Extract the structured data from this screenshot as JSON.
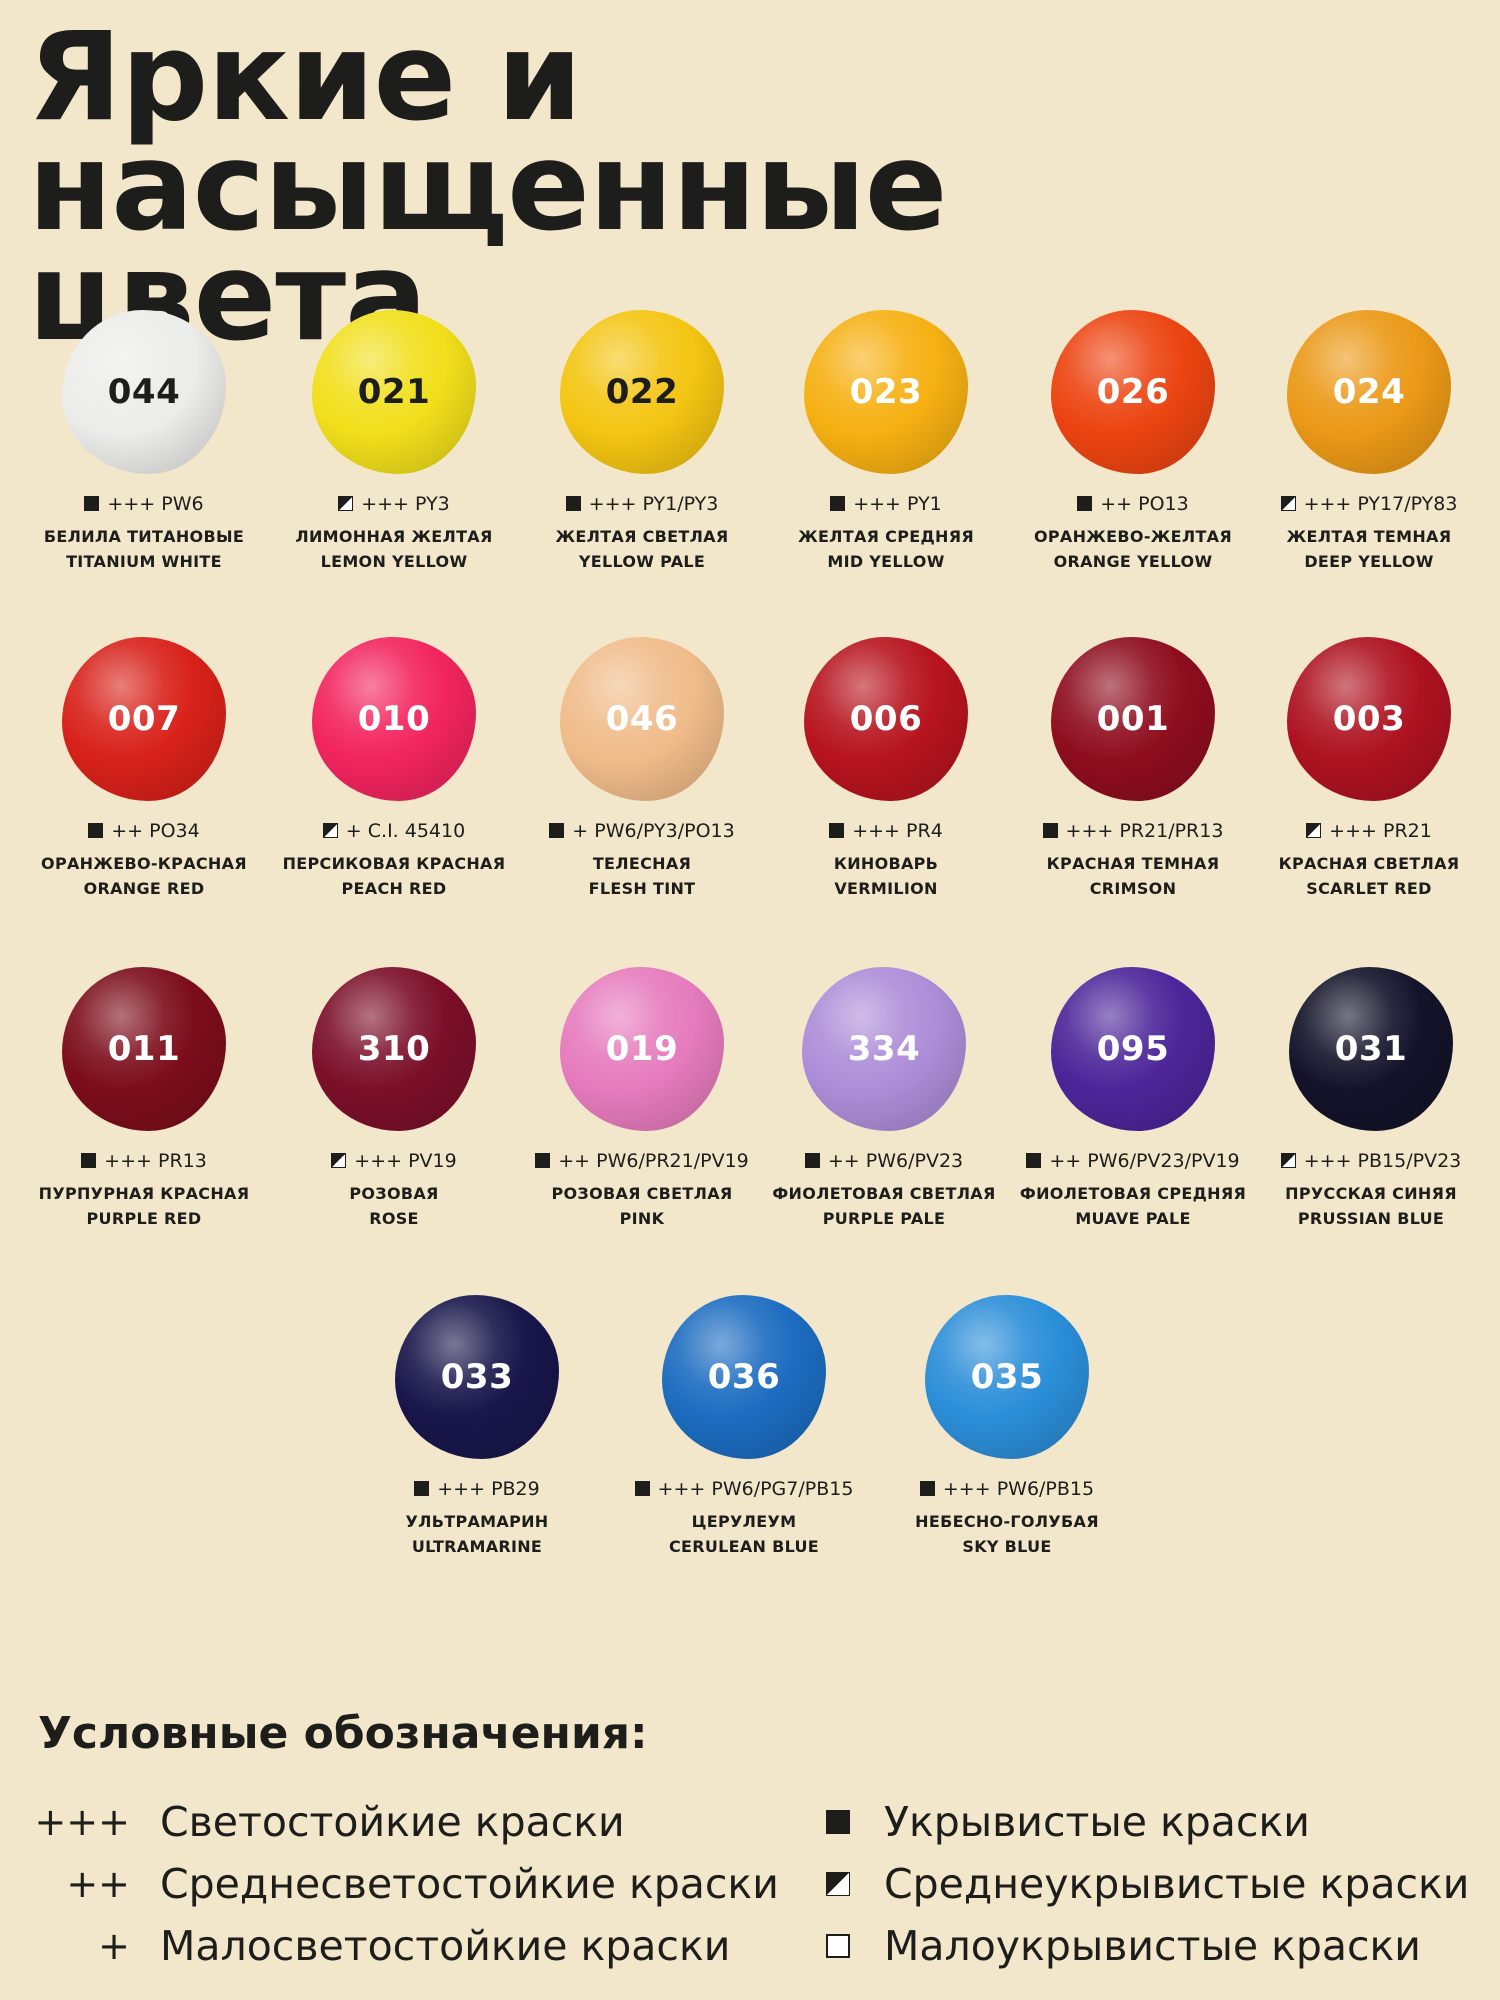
{
  "title": {
    "line1": "Яркие и насыщенные",
    "line2": "цвета"
  },
  "swatches": [
    {
      "code": "044",
      "lightfastness": "+++",
      "pigment": "PW6",
      "opacity": "opaque",
      "name_ru": "БЕЛИЛА ТИТАНОВЫЕ",
      "name_en": "TITANIUM WHITE",
      "color": "#ececea",
      "text_color": "#1d1d1b"
    },
    {
      "code": "021",
      "lightfastness": "+++",
      "pigment": "PY3",
      "opacity": "semi",
      "name_ru": "ЛИМОННАЯ ЖЕЛТАЯ",
      "name_en": "LEMON YELLOW",
      "color": "#f1df1b",
      "text_color": "#1d1d1b"
    },
    {
      "code": "022",
      "lightfastness": "+++",
      "pigment": "PY1/PY3",
      "opacity": "opaque",
      "name_ru": "ЖЕЛТАЯ СВЕТЛАЯ",
      "name_en": "YELLOW PALE",
      "color": "#f4c512",
      "text_color": "#1d1d1b"
    },
    {
      "code": "023",
      "lightfastness": "+++",
      "pigment": "PY1",
      "opacity": "opaque",
      "name_ru": "ЖЕЛТАЯ СРЕДНЯЯ",
      "name_en": "MID YELLOW",
      "color": "#f6b012",
      "text_color": "#ffffff"
    },
    {
      "code": "026",
      "lightfastness": "++",
      "pigment": "PO13",
      "opacity": "opaque",
      "name_ru": "ОРАНЖЕВО-ЖЕЛТАЯ",
      "name_en": "ORANGE YELLOW",
      "color": "#ec4411",
      "text_color": "#ffffff"
    },
    {
      "code": "024",
      "lightfastness": "+++",
      "pigment": "PY17/PY83",
      "opacity": "semi",
      "name_ru": "ЖЕЛТАЯ ТЕМНАЯ",
      "name_en": "DEEP YELLOW",
      "color": "#eb9917",
      "text_color": "#ffffff"
    },
    {
      "code": "007",
      "lightfastness": "++",
      "pigment": "PO34",
      "opacity": "opaque",
      "name_ru": "ОРАНЖЕВО-КРАСНАЯ",
      "name_en": "ORANGE RED",
      "color": "#d8211a",
      "text_color": "#ffffff"
    },
    {
      "code": "010",
      "lightfastness": "+",
      "pigment": "C.I. 45410",
      "opacity": "semi",
      "name_ru": "ПЕРСИКОВАЯ КРАСНАЯ",
      "name_en": "PEACH RED",
      "color": "#f2245e",
      "text_color": "#ffffff"
    },
    {
      "code": "046",
      "lightfastness": "+",
      "pigment": "PW6/PY3/PO13",
      "opacity": "opaque",
      "name_ru": "ТЕЛЕСНАЯ",
      "name_en": "FLESH TINT",
      "color": "#f0bc8a",
      "text_color": "#ffffff"
    },
    {
      "code": "006",
      "lightfastness": "+++",
      "pigment": "PR4",
      "opacity": "opaque",
      "name_ru": "КИНОВАРЬ",
      "name_en": "VERMILION",
      "color": "#b7141e",
      "text_color": "#ffffff"
    },
    {
      "code": "001",
      "lightfastness": "+++",
      "pigment": "PR21/PR13",
      "opacity": "opaque",
      "name_ru": "КРАСНАЯ ТЕМНАЯ",
      "name_en": "CRIMSON",
      "color": "#8e0d1f",
      "text_color": "#ffffff"
    },
    {
      "code": "003",
      "lightfastness": "+++",
      "pigment": "PR21",
      "opacity": "semi",
      "name_ru": "КРАСНАЯ СВЕТЛАЯ",
      "name_en": "SCARLET RED",
      "color": "#ae1220",
      "text_color": "#ffffff"
    },
    {
      "code": "011",
      "lightfastness": "+++",
      "pigment": "PR13",
      "opacity": "opaque",
      "name_ru": "ПУРПУРНАЯ КРАСНАЯ",
      "name_en": "PURPLE RED",
      "color": "#7c0d1b",
      "text_color": "#ffffff"
    },
    {
      "code": "310",
      "lightfastness": "+++",
      "pigment": "PV19",
      "opacity": "semi",
      "name_ru": "РОЗОВАЯ",
      "name_en": "ROSE",
      "color": "#7c0f2a",
      "text_color": "#ffffff"
    },
    {
      "code": "019",
      "lightfastness": "++",
      "pigment": "PW6/PR21/PV19",
      "opacity": "opaque",
      "name_ru": "РОЗОВАЯ СВЕТЛАЯ",
      "name_en": "PINK",
      "color": "#e67bbd",
      "text_color": "#ffffff"
    },
    {
      "code": "334",
      "lightfastness": "++",
      "pigment": "PW6/PV23",
      "opacity": "opaque",
      "name_ru": "ФИОЛЕТОВАЯ СВЕТЛАЯ",
      "name_en": "PURPLE PALE",
      "color": "#ad8dd8",
      "text_color": "#ffffff"
    },
    {
      "code": "095",
      "lightfastness": "++",
      "pigment": "PW6/PV23/PV19",
      "opacity": "opaque",
      "name_ru": "ФИОЛЕТОВАЯ СРЕДНЯЯ",
      "name_en": "MUAVE PALE",
      "color": "#4c2599",
      "text_color": "#ffffff"
    },
    {
      "code": "031",
      "lightfastness": "+++",
      "pigment": "PB15/PV23",
      "opacity": "semi",
      "name_ru": "ПРУССКАЯ СИНЯЯ",
      "name_en": "PRUSSIAN BLUE",
      "color": "#13132a",
      "text_color": "#ffffff"
    },
    {
      "code": "033",
      "lightfastness": "+++",
      "pigment": "PB29",
      "opacity": "opaque",
      "name_ru": "УЛЬТРАМАРИН",
      "name_en": "ULTRAMARINE",
      "color": "#18164a",
      "text_color": "#ffffff"
    },
    {
      "code": "036",
      "lightfastness": "+++",
      "pigment": "PW6/PG7/PB15",
      "opacity": "opaque",
      "name_ru": "ЦЕРУЛЕУМ",
      "name_en": "CERULEAN BLUE",
      "color": "#1c6cc0",
      "text_color": "#ffffff"
    },
    {
      "code": "035",
      "lightfastness": "+++",
      "pigment": "PW6/PB15",
      "opacity": "opaque",
      "name_ru": "НЕБЕСНО-ГОЛУБАЯ",
      "name_en": "SKY BLUE",
      "color": "#2b8ed8",
      "text_color": "#ffffff"
    }
  ],
  "legend": {
    "title": "Условные обозначения:",
    "lightfastness": [
      {
        "symbol": "+++",
        "label": "Светостойкие краски"
      },
      {
        "symbol": "++",
        "label": "Среднесветостойкие краски"
      },
      {
        "symbol": "+",
        "label": "Малосветостойкие краски"
      }
    ],
    "opacity": [
      {
        "icon": "opaque",
        "label": "Укрывистые краски"
      },
      {
        "icon": "semi",
        "label": "Среднеукрывистые краски"
      },
      {
        "icon": "transparent",
        "label": "Малоукрывистые краски"
      }
    ]
  }
}
